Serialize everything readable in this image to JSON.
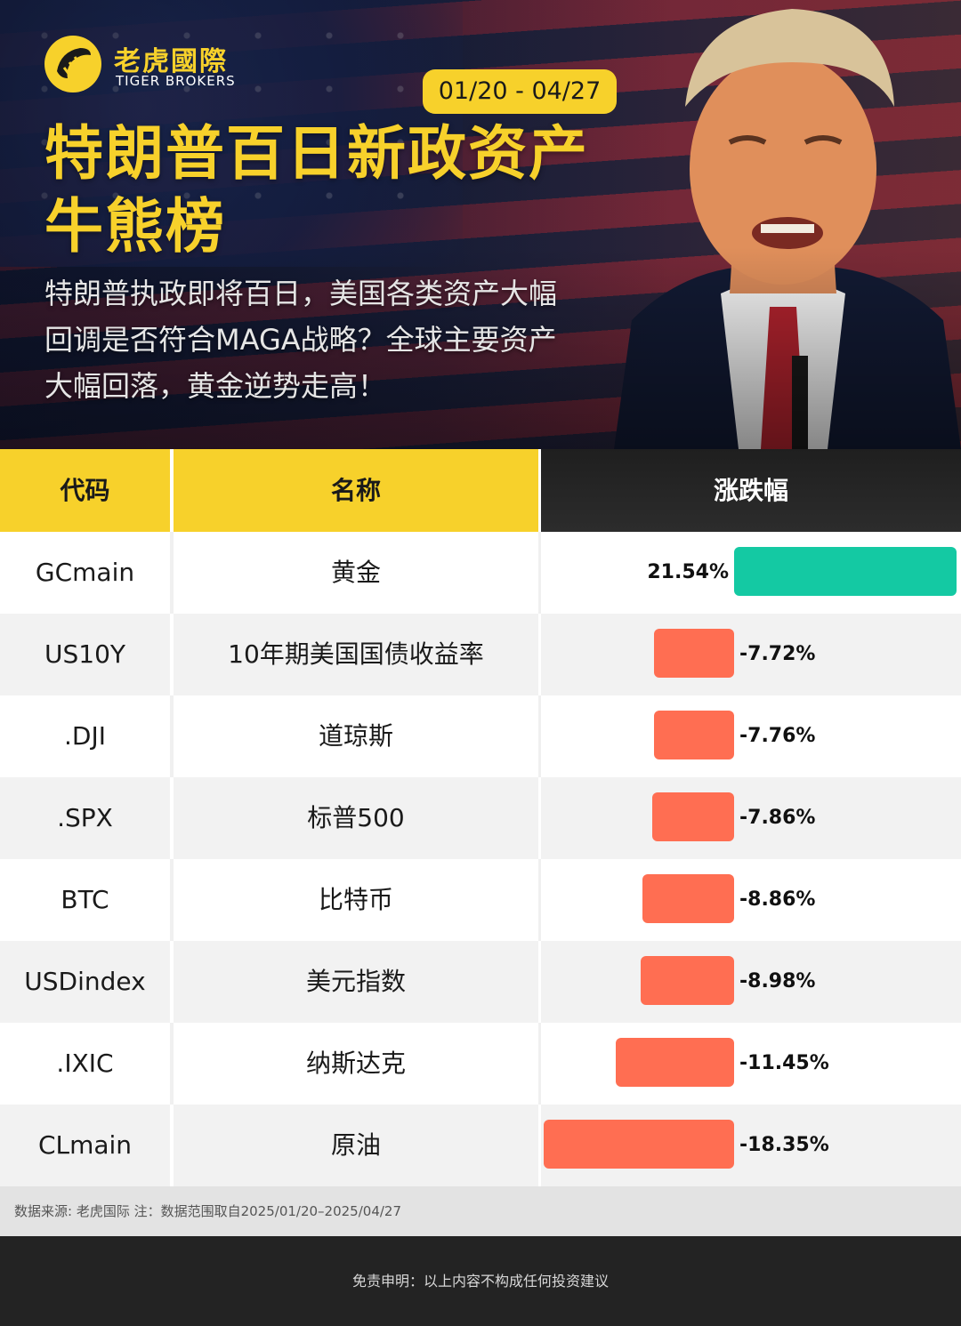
{
  "brand": {
    "name_cn": "老虎國際",
    "name_en": "TIGER BROKERS",
    "color": "#f7d12b"
  },
  "hero": {
    "date_range": "01/20 - 04/27",
    "title": "特朗普百日新政资产牛熊榜",
    "subtitle": "特朗普执政即将百日，美国各类资产大幅回调是否符合MAGA战略？全球主要资产大幅回落，黄金逆势走高！"
  },
  "table": {
    "headers": {
      "code": "代码",
      "name": "名称",
      "change": "涨跌幅"
    }
  },
  "chart_data": {
    "type": "bar",
    "title": "特朗普百日新政资产牛熊榜",
    "orientation": "horizontal",
    "unit": "%",
    "colors": {
      "positive": "#14c9a3",
      "negative": "#ff6e52"
    },
    "rows": [
      {
        "code": "GCmain",
        "name": "黄金",
        "value": 21.54,
        "label": "21.54%"
      },
      {
        "code": "US10Y",
        "name": "10年期美国国债收益率",
        "value": -7.72,
        "label": "-7.72%"
      },
      {
        "code": ".DJI",
        "name": "道琼斯",
        "value": -7.76,
        "label": "-7.76%"
      },
      {
        "code": ".SPX",
        "name": "标普500",
        "value": -7.86,
        "label": "-7.86%"
      },
      {
        "code": "BTC",
        "name": "比特币",
        "value": -8.86,
        "label": "-8.86%"
      },
      {
        "code": "USDindex",
        "name": "美元指数",
        "value": -8.98,
        "label": "-8.98%"
      },
      {
        "code": ".IXIC",
        "name": "纳斯达克",
        "value": -11.45,
        "label": "-11.45%"
      },
      {
        "code": "CLmain",
        "name": "原油",
        "value": -18.35,
        "label": "-18.35%"
      }
    ]
  },
  "footer": {
    "source": "数据来源: 老虎国际 注：数据范围取自2025/01/20–2025/04/27",
    "disclaimer": "免责申明：以上内容不构成任何投资建议"
  }
}
